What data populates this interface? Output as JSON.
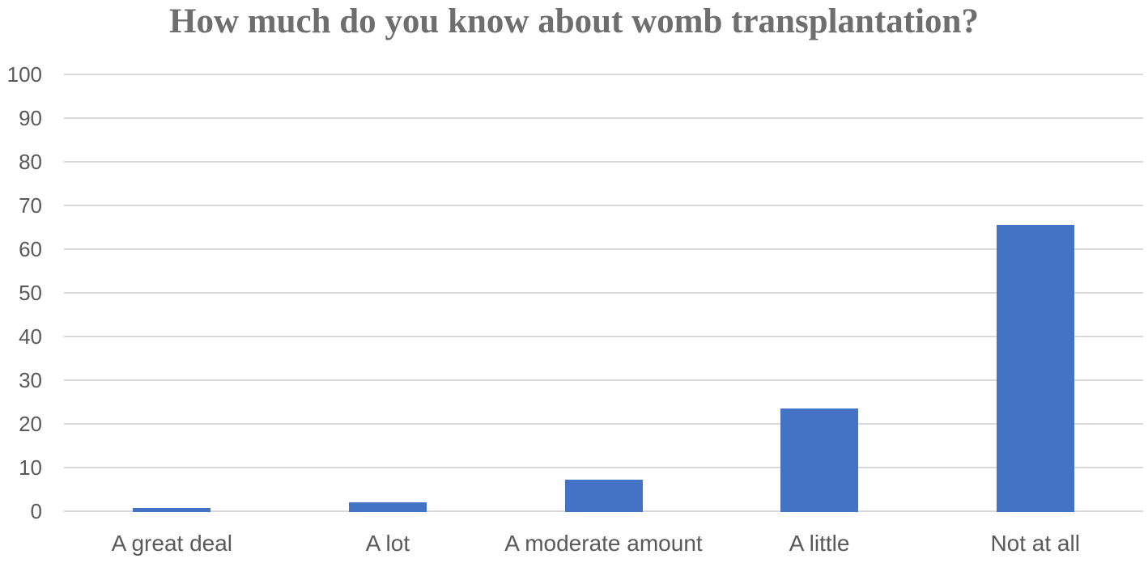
{
  "chart_data": {
    "type": "bar",
    "title": "How much do you know about womb transplantation?",
    "categories": [
      "A great deal",
      "A lot",
      "A moderate amount",
      "A little",
      "Not at all"
    ],
    "values": [
      0.7,
      2,
      7.2,
      23.5,
      65.5
    ],
    "xlabel": "",
    "ylabel": "",
    "ylim": [
      0,
      100
    ],
    "ytick_step": 10,
    "ytick_labels": [
      "0",
      "10",
      "20",
      "30",
      "40",
      "50",
      "60",
      "70",
      "80",
      "90",
      "100"
    ],
    "grid": true,
    "legend": false,
    "bar_color": "#4472C4",
    "gridline_color": "#D9D9D9",
    "axis_label_color": "#595959",
    "title_color": "#6E6E6E"
  }
}
